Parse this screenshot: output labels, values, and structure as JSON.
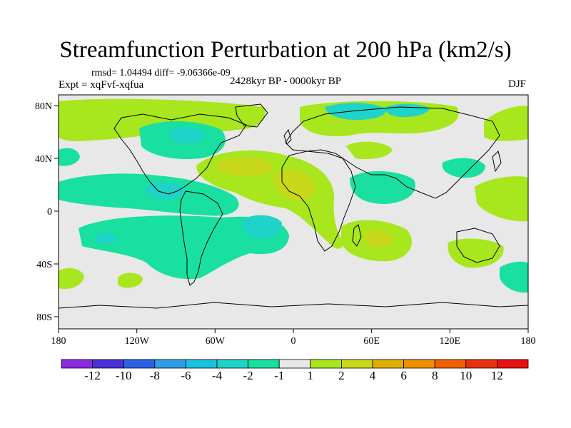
{
  "title": "Streamfunction Perturbation at 200 hPa (km2/s)",
  "stats": "rmsd= 1.04494 diff= -9.06366e-09",
  "experiment": "Expt = xqFvf-xqfua",
  "period": "2428kyr BP - 0000kyr BP",
  "season": "DJF",
  "lat_ticks": [
    "80N",
    "40N",
    "0",
    "40S",
    "80S"
  ],
  "lon_ticks": [
    "180",
    "120W",
    "60W",
    "0",
    "60E",
    "120E",
    "180"
  ],
  "colorbar": {
    "labels": [
      "-12",
      "-10",
      "-8",
      "-6",
      "-4",
      "-2",
      "-1",
      "1",
      "2",
      "4",
      "6",
      "8",
      "10",
      "12"
    ],
    "colors": [
      "#8a2be2",
      "#4b2fd9",
      "#2a62e8",
      "#2f9ee8",
      "#19c2e0",
      "#20d3c8",
      "#19e0a0",
      "#e8e8e8",
      "#a8e61e",
      "#c8d81a",
      "#e0b000",
      "#f09000",
      "#f06000",
      "#e83010",
      "#e81010"
    ]
  },
  "colors": {
    "land_bg": "#e8e8e8",
    "pos_light": "#a8e61e",
    "pos_mid": "#c8d81a",
    "neg_light": "#19e0a0",
    "neg_mid": "#20d3c8",
    "neg_strong": "#19c2e0"
  }
}
